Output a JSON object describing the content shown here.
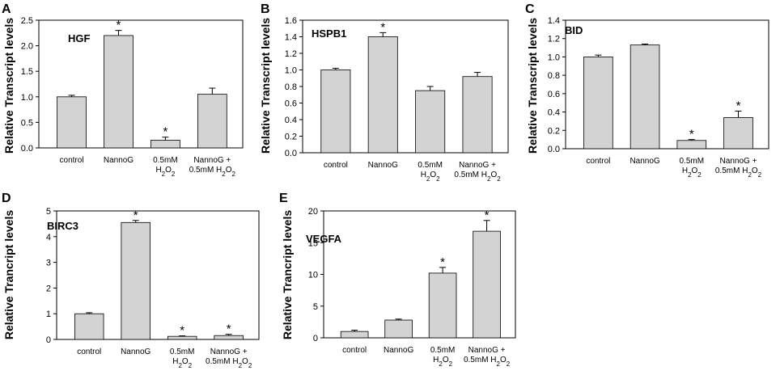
{
  "chart_data": [
    {
      "type": "bar",
      "panel": "A",
      "title": "HGF",
      "xlabel": "",
      "ylabel": "Relative Transcript levels",
      "ylim": [
        0,
        2.5
      ],
      "yticks": [
        "0.0",
        "0.5",
        "1.0",
        "1.5",
        "2.0",
        "2.5"
      ],
      "categories": [
        {
          "line1": "control",
          "line2": ""
        },
        {
          "line1": "NannoG",
          "line2": ""
        },
        {
          "line1": "0.5mM",
          "line2": "H2O2"
        },
        {
          "line1": "NannoG +",
          "line2": "0.5mM H2O2"
        }
      ],
      "values": [
        1.0,
        2.2,
        0.15,
        1.05
      ],
      "errors": [
        0.03,
        0.1,
        0.06,
        0.12
      ],
      "significant": [
        false,
        true,
        true,
        false
      ],
      "marker": "*"
    },
    {
      "type": "bar",
      "panel": "B",
      "title": "HSPB1",
      "xlabel": "",
      "ylabel": "Relative Transcript levels",
      "ylim": [
        0,
        1.6
      ],
      "yticks": [
        "0.0",
        "0.2",
        "0.4",
        "0.6",
        "0.8",
        "1.0",
        "1.2",
        "1.4",
        "1.6"
      ],
      "categories": [
        {
          "line1": "control",
          "line2": ""
        },
        {
          "line1": "NannoG",
          "line2": ""
        },
        {
          "line1": "0.5mM",
          "line2": "H2O2"
        },
        {
          "line1": "NannoG +",
          "line2": "0.5mM H2O2"
        }
      ],
      "values": [
        1.0,
        1.4,
        0.75,
        0.92
      ],
      "errors": [
        0.02,
        0.05,
        0.05,
        0.05
      ],
      "significant": [
        false,
        true,
        false,
        false
      ],
      "marker": "*"
    },
    {
      "type": "bar",
      "panel": "C",
      "title": "BID",
      "xlabel": "",
      "ylabel": "Relative Transcript levels",
      "ylim": [
        0,
        1.4
      ],
      "yticks": [
        "0.0",
        "0.2",
        "0.4",
        "0.6",
        "0.8",
        "1.0",
        "1.2",
        "1.4"
      ],
      "categories": [
        {
          "line1": "control",
          "line2": ""
        },
        {
          "line1": "NannoG",
          "line2": ""
        },
        {
          "line1": "0.5mM",
          "line2": "H2O2"
        },
        {
          "line1": "NannoG +",
          "line2": "0.5mM H2O2"
        }
      ],
      "values": [
        1.0,
        1.13,
        0.09,
        0.34
      ],
      "errors": [
        0.02,
        0.01,
        0.01,
        0.07
      ],
      "significant": [
        false,
        false,
        true,
        true
      ],
      "marker": "*"
    },
    {
      "type": "bar",
      "panel": "D",
      "title": "BIRC3",
      "xlabel": "",
      "ylabel": "Relative Trancript levels",
      "ylim": [
        0,
        5
      ],
      "yticks": [
        "0",
        "1",
        "2",
        "3",
        "4",
        "5"
      ],
      "categories": [
        {
          "line1": "control",
          "line2": ""
        },
        {
          "line1": "NannoG",
          "line2": ""
        },
        {
          "line1": "0.5mM",
          "line2": "H2O2"
        },
        {
          "line1": "NannoG +",
          "line2": "0.5mM H2O2"
        }
      ],
      "values": [
        1.0,
        4.55,
        0.12,
        0.15
      ],
      "errors": [
        0.04,
        0.08,
        0.02,
        0.05
      ],
      "significant": [
        false,
        true,
        true,
        true
      ],
      "marker": "*"
    },
    {
      "type": "bar",
      "panel": "E",
      "title": "VEGFA",
      "xlabel": "",
      "ylabel": "Relative Trancript levels",
      "ylim": [
        0,
        20
      ],
      "yticks": [
        "0",
        "5",
        "10",
        "15",
        "20"
      ],
      "categories": [
        {
          "line1": "control",
          "line2": ""
        },
        {
          "line1": "NannoG",
          "line2": ""
        },
        {
          "line1": "0.5mM",
          "line2": "H2O2"
        },
        {
          "line1": "NannoG +",
          "line2": "0.5mM H2O2"
        }
      ],
      "values": [
        1.0,
        2.8,
        10.2,
        16.8
      ],
      "errors": [
        0.2,
        0.15,
        0.9,
        1.7
      ],
      "significant": [
        false,
        false,
        true,
        true
      ],
      "marker": "*"
    }
  ]
}
